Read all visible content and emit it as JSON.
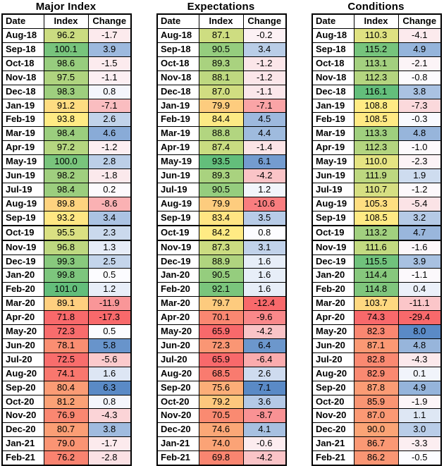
{
  "layout_hints": {
    "grid": "off",
    "page_break_row": "Oct-19",
    "index_scale": {
      "min_color": "#F8696B",
      "mid_color": "#FFEB84",
      "max_color": "#63BE7B",
      "midpoint": "50th-percentile"
    },
    "change_scale": {
      "min_color": "#F8696B",
      "mid_color": "#FCFCFF",
      "max_color": "#5A8AC6",
      "midpoint": "50th-percentile"
    },
    "border_color": "#000000",
    "background": "#ffffff"
  },
  "chart_data": [
    {
      "type": "table",
      "title": "Major Index",
      "columns": [
        "Date",
        "Index",
        "Change"
      ],
      "dates": [
        "Aug-18",
        "Sep-18",
        "Oct-18",
        "Nov-18",
        "Dec-18",
        "Jan-19",
        "Feb-19",
        "Mar-19",
        "Apr-19",
        "May-19",
        "Jun-19",
        "Jul-19",
        "Aug-19",
        "Sep-19",
        "Oct-19",
        "Nov-19",
        "Dec-19",
        "Jan-20",
        "Feb-20",
        "Mar-20",
        "Apr-20",
        "May-20",
        "Jun-20",
        "Jul-20",
        "Aug-20",
        "Sep-20",
        "Oct-20",
        "Nov-20",
        "Dec-20",
        "Jan-21",
        "Feb-21"
      ],
      "index": [
        96.2,
        100.1,
        98.6,
        97.5,
        98.3,
        91.2,
        93.8,
        98.4,
        97.2,
        100.0,
        98.2,
        98.4,
        89.8,
        93.2,
        95.5,
        96.8,
        99.3,
        99.8,
        101.0,
        89.1,
        71.8,
        72.3,
        78.1,
        72.5,
        74.1,
        80.4,
        81.2,
        76.9,
        80.7,
        79.0,
        76.2
      ],
      "change": [
        -1.7,
        3.9,
        -1.5,
        -1.1,
        0.8,
        -7.1,
        2.6,
        4.6,
        -1.2,
        2.8,
        -1.8,
        0.2,
        -8.6,
        3.4,
        2.3,
        1.3,
        2.5,
        0.5,
        1.2,
        -11.9,
        -17.3,
        0.5,
        5.8,
        -5.6,
        1.6,
        6.3,
        0.8,
        -4.3,
        3.8,
        -1.7,
        -2.8
      ]
    },
    {
      "type": "table",
      "title": "Expectations",
      "columns": [
        "Date",
        "Index",
        "Change"
      ],
      "dates": [
        "Aug-18",
        "Sep-18",
        "Oct-18",
        "Nov-18",
        "Dec-18",
        "Jan-19",
        "Feb-19",
        "Mar-19",
        "Apr-19",
        "May-19",
        "Jun-19",
        "Jul-19",
        "Aug-19",
        "Sep-19",
        "Oct-19",
        "Nov-19",
        "Dec-19",
        "Jan-20",
        "Feb-20",
        "Mar-20",
        "Apr-20",
        "May-20",
        "Jun-20",
        "Jul-20",
        "Aug-20",
        "Sep-20",
        "Oct-20",
        "Nov-20",
        "Dec-20",
        "Jan-21",
        "Feb-21"
      ],
      "index": [
        87.1,
        90.5,
        89.3,
        88.1,
        87.0,
        79.9,
        84.4,
        88.8,
        87.4,
        93.5,
        89.3,
        90.5,
        79.9,
        83.4,
        84.2,
        87.3,
        88.9,
        90.5,
        92.1,
        79.7,
        70.1,
        65.9,
        72.3,
        65.9,
        68.5,
        75.6,
        79.2,
        70.5,
        74.6,
        74.0,
        69.8
      ],
      "change": [
        -0.2,
        3.4,
        -1.2,
        -1.2,
        -1.1,
        -7.1,
        4.5,
        4.4,
        -1.4,
        6.1,
        -4.2,
        1.2,
        -10.6,
        3.5,
        0.8,
        3.1,
        1.6,
        1.6,
        1.6,
        -12.4,
        -9.6,
        -4.2,
        6.4,
        -6.4,
        2.6,
        7.1,
        3.6,
        -8.7,
        4.1,
        -0.6,
        -4.2
      ]
    },
    {
      "type": "table",
      "title": "Conditions",
      "columns": [
        "Date",
        "Index",
        "Change"
      ],
      "dates": [
        "Aug-18",
        "Sep-18",
        "Oct-18",
        "Nov-18",
        "Dec-18",
        "Jan-19",
        "Feb-19",
        "Mar-19",
        "Apr-19",
        "May-19",
        "Jun-19",
        "Jul-19",
        "Aug-19",
        "Sep-19",
        "Oct-19",
        "Nov-19",
        "Dec-19",
        "Jan-20",
        "Feb-20",
        "Mar-20",
        "Apr-20",
        "May-20",
        "Jun-20",
        "Jul-20",
        "Aug-20",
        "Sep-20",
        "Oct-20",
        "Nov-20",
        "Dec-20",
        "Jan-21",
        "Feb-21"
      ],
      "index": [
        110.3,
        115.2,
        113.1,
        112.3,
        116.1,
        108.8,
        108.5,
        113.3,
        112.3,
        110.0,
        111.9,
        110.7,
        105.3,
        108.5,
        113.2,
        111.6,
        115.5,
        114.4,
        114.8,
        103.7,
        74.3,
        82.3,
        87.1,
        82.8,
        82.9,
        87.8,
        85.9,
        87.0,
        90.0,
        86.7,
        86.2
      ],
      "change": [
        -4.1,
        4.9,
        -2.1,
        -0.8,
        3.8,
        -7.3,
        -0.3,
        4.8,
        -1.0,
        -2.3,
        1.9,
        -1.2,
        -5.4,
        3.2,
        4.7,
        -1.6,
        3.9,
        -1.1,
        0.4,
        -11.1,
        -29.4,
        8.0,
        4.8,
        -4.3,
        0.1,
        4.9,
        -1.9,
        1.1,
        3.0,
        -3.3,
        -0.5
      ]
    }
  ]
}
